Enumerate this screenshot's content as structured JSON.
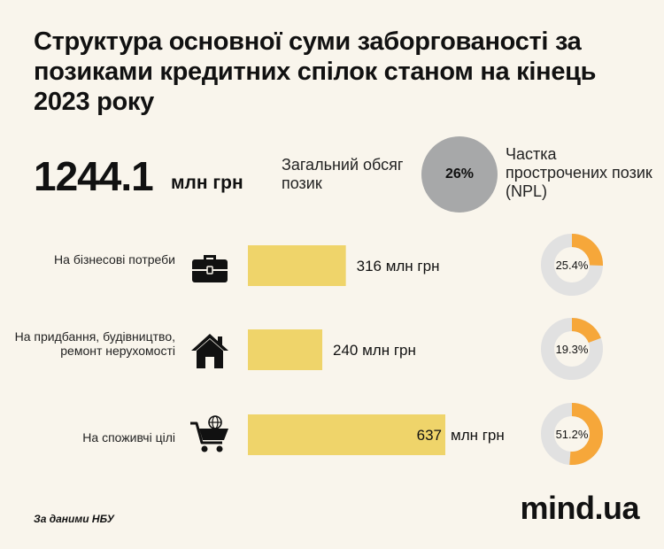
{
  "title": "Структура основної суми заборгованості за позиками кредитних спілок станом на кінець 2023 року",
  "total": {
    "value": "1244.1",
    "unit": "млн грн",
    "label": "Загальний обсяг позик"
  },
  "npl": {
    "value": "26%",
    "label": "Частка прострочених позик (NPL)"
  },
  "colors": {
    "bar": "#efd46a",
    "donut_fill": "#f6a73a",
    "donut_track": "#e1e1e1",
    "npl_circle": "#a7a8a9",
    "background": "#f9f5ec"
  },
  "chart_data": {
    "type": "bar",
    "orientation": "horizontal",
    "unit": "млн грн",
    "categories": [
      {
        "label": "На бізнесові потреби",
        "icon": "briefcase-icon",
        "value": 316,
        "value_text": "316",
        "npl_share": 25.4,
        "npl_text": "25.4%"
      },
      {
        "label": "На придбання, будівництво, ремонт нерухомості",
        "icon": "house-icon",
        "value": 240,
        "value_text": "240",
        "npl_share": 19.3,
        "npl_text": "19.3%"
      },
      {
        "label": "На споживчі цілі",
        "icon": "shopping-cart-icon",
        "value": 637,
        "value_text": "637",
        "npl_share": 51.2,
        "npl_text": "51.2%"
      }
    ]
  },
  "footer": {
    "source": "За даними НБУ",
    "brand": "mind.ua"
  }
}
